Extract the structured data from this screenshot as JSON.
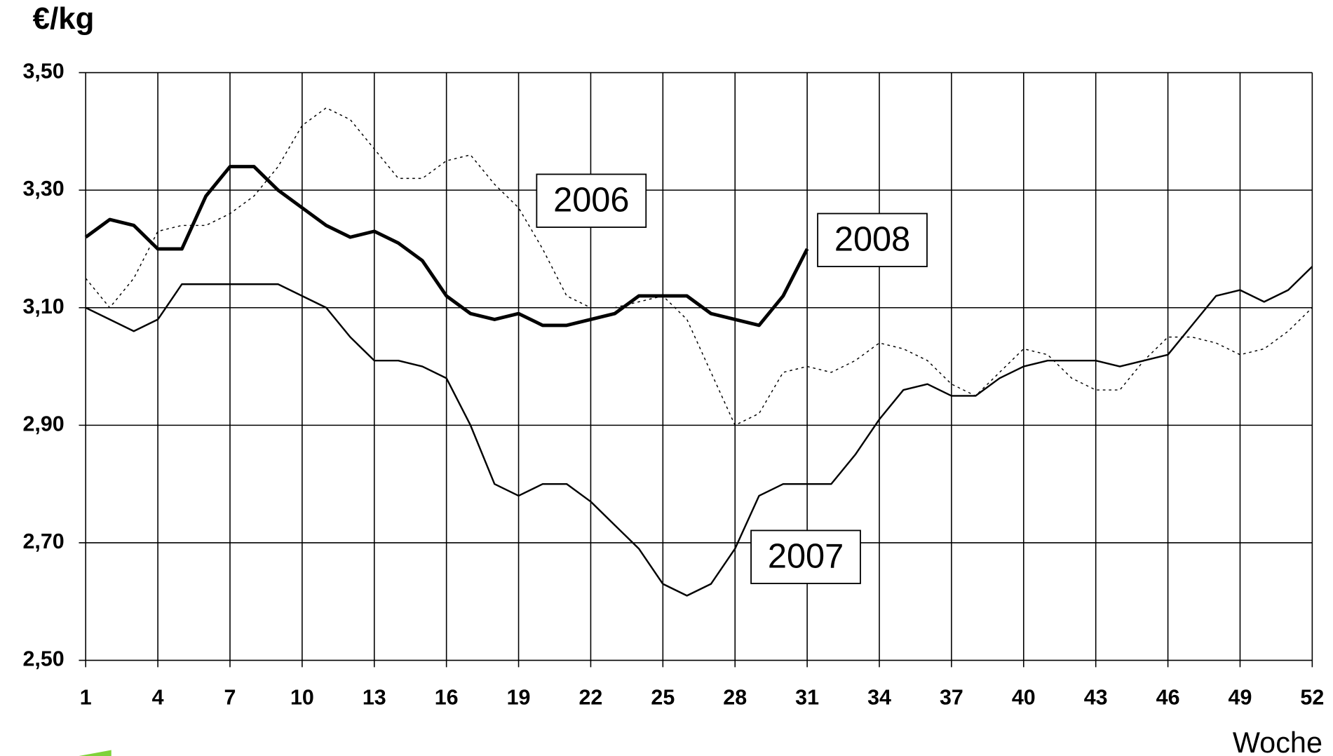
{
  "chart_data": {
    "type": "line",
    "y_label": "€/kg",
    "x_label": "Woche",
    "x": [
      1,
      2,
      3,
      4,
      5,
      6,
      7,
      8,
      9,
      10,
      11,
      12,
      13,
      14,
      15,
      16,
      17,
      18,
      19,
      20,
      21,
      22,
      23,
      24,
      25,
      26,
      27,
      28,
      29,
      30,
      31,
      32,
      33,
      34,
      35,
      36,
      37,
      38,
      39,
      40,
      41,
      42,
      43,
      44,
      45,
      46,
      47,
      48,
      49,
      50,
      51,
      52
    ],
    "xlim": [
      1,
      52
    ],
    "xticks": [
      1,
      4,
      7,
      10,
      13,
      16,
      19,
      22,
      25,
      28,
      31,
      34,
      37,
      40,
      43,
      46,
      49,
      52
    ],
    "ylim": [
      2.5,
      3.5
    ],
    "yticks": [
      {
        "value": 2.5,
        "label": "2,50"
      },
      {
        "value": 2.7,
        "label": "2,70"
      },
      {
        "value": 2.9,
        "label": "2,90"
      },
      {
        "value": 3.1,
        "label": "3,10"
      },
      {
        "value": 3.3,
        "label": "3,30"
      },
      {
        "value": 3.5,
        "label": "3,50"
      }
    ],
    "grid": true,
    "series": [
      {
        "name": "2006",
        "color": "#000000",
        "line_width": 1.2,
        "dashed": true,
        "values": [
          3.15,
          3.1,
          3.15,
          3.23,
          3.24,
          3.24,
          3.26,
          3.29,
          3.34,
          3.41,
          3.44,
          3.42,
          3.37,
          3.32,
          3.32,
          3.35,
          3.36,
          3.31,
          3.27,
          3.2,
          3.12,
          3.1,
          3.1,
          3.11,
          3.12,
          3.08,
          2.99,
          2.9,
          2.92,
          2.99,
          3.0,
          2.99,
          3.01,
          3.04,
          3.03,
          3.01,
          2.97,
          2.95,
          2.99,
          3.03,
          3.02,
          2.98,
          2.96,
          2.96,
          3.01,
          3.05,
          3.05,
          3.04,
          3.02,
          3.03,
          3.06,
          3.1
        ]
      },
      {
        "name": "2007",
        "color": "#000000",
        "line_width": 2,
        "dashed": false,
        "values": [
          3.1,
          3.08,
          3.06,
          3.08,
          3.14,
          3.14,
          3.14,
          3.14,
          3.14,
          3.12,
          3.1,
          3.05,
          3.01,
          3.01,
          3.0,
          2.98,
          2.9,
          2.8,
          2.78,
          2.8,
          2.8,
          2.77,
          2.73,
          2.69,
          2.63,
          2.61,
          2.63,
          2.69,
          2.78,
          2.8,
          2.8,
          2.8,
          2.85,
          2.91,
          2.96,
          2.97,
          2.95,
          2.95,
          2.98,
          3.0,
          3.01,
          3.01,
          3.01,
          3.0,
          3.01,
          3.02,
          3.07,
          3.12,
          3.13,
          3.11,
          3.13,
          3.17
        ]
      },
      {
        "name": "2008",
        "color": "#000000",
        "line_width": 4,
        "dashed": false,
        "values": [
          3.22,
          3.25,
          3.24,
          3.2,
          3.2,
          3.29,
          3.34,
          3.34,
          3.3,
          3.27,
          3.24,
          3.22,
          3.23,
          3.21,
          3.18,
          3.12,
          3.09,
          3.08,
          3.09,
          3.07,
          3.07,
          3.08,
          3.09,
          3.12,
          3.12,
          3.12,
          3.09,
          3.08,
          3.07,
          3.12,
          3.2,
          null,
          null,
          null,
          null,
          null,
          null,
          null,
          null,
          null,
          null,
          null,
          null,
          null,
          null,
          null,
          null,
          null,
          null,
          null,
          null,
          null
        ]
      }
    ]
  }
}
